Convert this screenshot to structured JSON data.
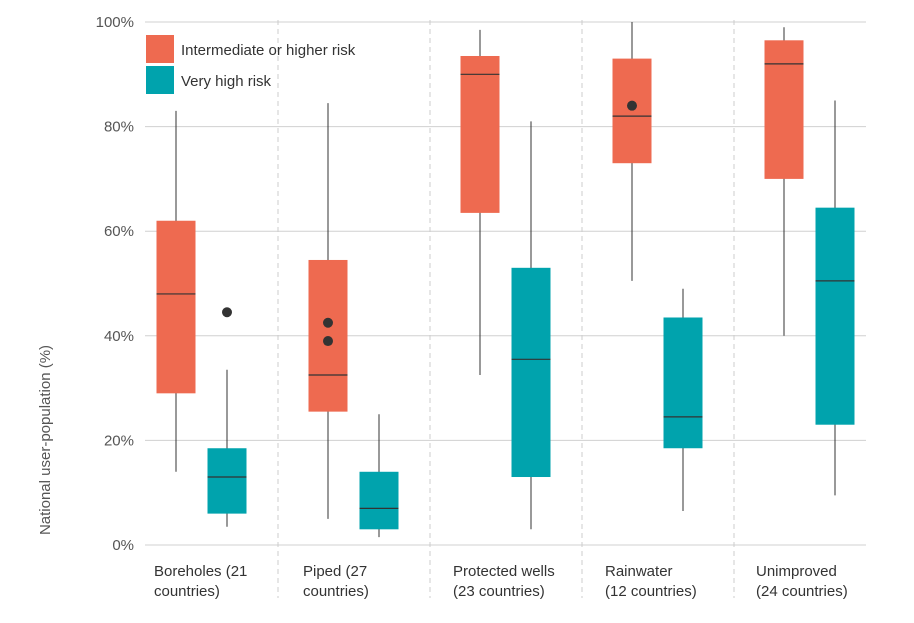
{
  "chart_data": {
    "type": "box",
    "ylabel": "National user-population (%)",
    "ylim": [
      0,
      100
    ],
    "yticks": [
      0,
      20,
      40,
      60,
      80,
      100
    ],
    "ytick_labels": [
      "0%",
      "20%",
      "40%",
      "60%",
      "80%",
      "100%"
    ],
    "grid": true,
    "legend_position": "top-left",
    "categories": [
      [
        "Boreholes (21",
        "countries)"
      ],
      [
        "Piped (27",
        "countries)"
      ],
      [
        "Protected wells",
        "(23 countries)"
      ],
      [
        "Rainwater",
        "(12 countries)"
      ],
      [
        "Unimproved",
        "(24 countries)"
      ]
    ],
    "series": [
      {
        "name": "Intermediate or higher risk",
        "color": "#ee6a50",
        "boxes": [
          {
            "whisker_low": 14,
            "q1": 29,
            "median": 48,
            "q3": 62,
            "whisker_high": 83,
            "outliers": []
          },
          {
            "whisker_low": 5,
            "q1": 25.5,
            "median": 32.5,
            "q3": 54.5,
            "whisker_high": 84.5,
            "outliers": [
              42.5,
              39
            ]
          },
          {
            "whisker_low": 32.5,
            "q1": 63.5,
            "median": 90,
            "q3": 93.5,
            "whisker_high": 98.5,
            "outliers": []
          },
          {
            "whisker_low": 50.5,
            "q1": 73,
            "median": 82,
            "q3": 93,
            "whisker_high": 100,
            "outliers": [
              84
            ]
          },
          {
            "whisker_low": 40,
            "q1": 70,
            "median": 92,
            "q3": 96.5,
            "whisker_high": 99,
            "outliers": []
          }
        ]
      },
      {
        "name": "Very high risk",
        "color": "#00a3ad",
        "boxes": [
          {
            "whisker_low": 3.5,
            "q1": 6,
            "median": 13,
            "q3": 18.5,
            "whisker_high": 33.5,
            "outliers": [
              44.5
            ]
          },
          {
            "whisker_low": 1.5,
            "q1": 3,
            "median": 7,
            "q3": 14,
            "whisker_high": 25,
            "outliers": []
          },
          {
            "whisker_low": 3,
            "q1": 13,
            "median": 35.5,
            "q3": 53,
            "whisker_high": 81,
            "outliers": []
          },
          {
            "whisker_low": 6.5,
            "q1": 18.5,
            "median": 24.5,
            "q3": 43.5,
            "whisker_high": 49,
            "outliers": []
          },
          {
            "whisker_low": 9.5,
            "q1": 23,
            "median": 50.5,
            "q3": 64.5,
            "whisker_high": 85,
            "outliers": []
          }
        ]
      }
    ],
    "colors": {
      "grid": "#d0d0d0",
      "separator": "#cccccc",
      "whisker": "#333333",
      "median": "#333333",
      "outlier": "#333333"
    }
  }
}
